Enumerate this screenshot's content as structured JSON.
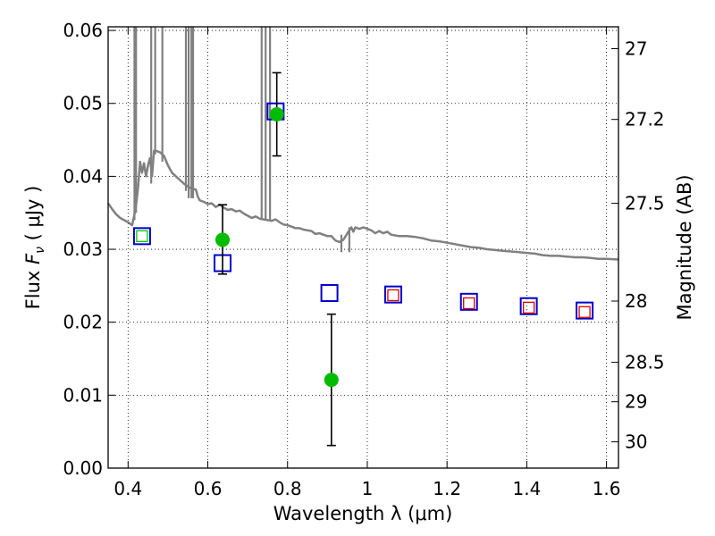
{
  "chart_data": {
    "type": "scatter",
    "xlabel": "Wavelength  λ (μm)",
    "ylabel": "Flux  F_ν  ( μJy )",
    "ylabel_right": "Magnitude (AB)",
    "xlim": [
      0.35,
      1.63
    ],
    "ylim": [
      0.0,
      0.0605
    ],
    "grid": true,
    "x_ticks": [
      0.4,
      0.6,
      0.8,
      1.0,
      1.2,
      1.4,
      1.6
    ],
    "x_tick_labels": [
      "0.4",
      "0.6",
      "0.8",
      "1",
      "1.2",
      "1.4",
      "1.6"
    ],
    "y_ticks": [
      0.0,
      0.01,
      0.02,
      0.03,
      0.04,
      0.05,
      0.06
    ],
    "y_tick_labels": [
      "0.00",
      "0.01",
      "0.02",
      "0.03",
      "0.04",
      "0.05",
      "0.06"
    ],
    "right_ticks": [
      {
        "label": "27",
        "flux": 0.0575
      },
      {
        "label": "27.2",
        "flux": 0.0478
      },
      {
        "label": "27.5",
        "flux": 0.0363
      },
      {
        "label": "28",
        "flux": 0.0229
      },
      {
        "label": "28.5",
        "flux": 0.0145
      },
      {
        "label": "29",
        "flux": 0.0091
      },
      {
        "label": "30",
        "flux": 0.0036
      }
    ],
    "series": [
      {
        "style": "line",
        "color": "#808080",
        "points": [
          [
            0.35,
            0.0363
          ],
          [
            0.36,
            0.0355
          ],
          [
            0.37,
            0.0348
          ],
          [
            0.38,
            0.0343
          ],
          [
            0.39,
            0.034
          ],
          [
            0.4,
            0.0337
          ],
          [
            0.41,
            0.0333
          ],
          [
            0.415,
            0.0345
          ],
          [
            0.42,
            0.036
          ],
          [
            0.425,
            0.0385
          ],
          [
            0.43,
            0.042
          ],
          [
            0.435,
            0.0405
          ],
          [
            0.44,
            0.0418
          ],
          [
            0.445,
            0.04
          ],
          [
            0.45,
            0.0415
          ],
          [
            0.455,
            0.0425
          ],
          [
            0.46,
            0.04
          ],
          [
            0.465,
            0.0435
          ],
          [
            0.47,
            0.0435
          ],
          [
            0.48,
            0.0433
          ],
          [
            0.49,
            0.0428
          ],
          [
            0.5,
            0.0415
          ],
          [
            0.51,
            0.0405
          ],
          [
            0.52,
            0.04
          ],
          [
            0.53,
            0.0395
          ],
          [
            0.54,
            0.039
          ],
          [
            0.55,
            0.0386
          ],
          [
            0.56,
            0.0383
          ],
          [
            0.57,
            0.0382
          ],
          [
            0.575,
            0.0372
          ],
          [
            0.58,
            0.0367
          ],
          [
            0.59,
            0.0365
          ],
          [
            0.6,
            0.0362
          ],
          [
            0.61,
            0.0363
          ],
          [
            0.62,
            0.0358
          ],
          [
            0.63,
            0.0361
          ],
          [
            0.64,
            0.0357
          ],
          [
            0.65,
            0.0354
          ],
          [
            0.66,
            0.0355
          ],
          [
            0.67,
            0.0352
          ],
          [
            0.68,
            0.0353
          ],
          [
            0.69,
            0.0349
          ],
          [
            0.7,
            0.0346
          ],
          [
            0.71,
            0.0343
          ],
          [
            0.72,
            0.0345
          ],
          [
            0.73,
            0.0342
          ],
          [
            0.74,
            0.0341
          ],
          [
            0.75,
            0.034
          ],
          [
            0.76,
            0.0339
          ],
          [
            0.77,
            0.0341
          ],
          [
            0.78,
            0.0337
          ],
          [
            0.79,
            0.0334
          ],
          [
            0.8,
            0.0333
          ],
          [
            0.81,
            0.0331
          ],
          [
            0.82,
            0.0329
          ],
          [
            0.83,
            0.0329
          ],
          [
            0.84,
            0.0327
          ],
          [
            0.85,
            0.0326
          ],
          [
            0.86,
            0.0325
          ],
          [
            0.87,
            0.0321
          ],
          [
            0.88,
            0.0322
          ],
          [
            0.89,
            0.032
          ],
          [
            0.9,
            0.0318
          ],
          [
            0.91,
            0.0318
          ],
          [
            0.92,
            0.0312
          ],
          [
            0.93,
            0.031
          ],
          [
            0.94,
            0.0313
          ],
          [
            0.95,
            0.0322
          ],
          [
            0.96,
            0.033
          ],
          [
            0.965,
            0.0324
          ],
          [
            0.97,
            0.033
          ],
          [
            0.98,
            0.0328
          ],
          [
            0.99,
            0.033
          ],
          [
            1.0,
            0.0328
          ],
          [
            1.01,
            0.0326
          ],
          [
            1.02,
            0.0322
          ],
          [
            1.03,
            0.0325
          ],
          [
            1.04,
            0.0322
          ],
          [
            1.05,
            0.0324
          ],
          [
            1.06,
            0.032
          ],
          [
            1.08,
            0.0318
          ],
          [
            1.1,
            0.0318
          ],
          [
            1.12,
            0.0317
          ],
          [
            1.14,
            0.0315
          ],
          [
            1.16,
            0.0312
          ],
          [
            1.18,
            0.0311
          ],
          [
            1.2,
            0.0309
          ],
          [
            1.22,
            0.0307
          ],
          [
            1.24,
            0.0305
          ],
          [
            1.26,
            0.0303
          ],
          [
            1.28,
            0.0302
          ],
          [
            1.3,
            0.03
          ],
          [
            1.32,
            0.0299
          ],
          [
            1.34,
            0.0298
          ],
          [
            1.36,
            0.0297
          ],
          [
            1.38,
            0.0296
          ],
          [
            1.4,
            0.0295
          ],
          [
            1.42,
            0.0294
          ],
          [
            1.44,
            0.0292
          ],
          [
            1.46,
            0.0291
          ],
          [
            1.48,
            0.0291
          ],
          [
            1.5,
            0.029
          ],
          [
            1.52,
            0.0289
          ],
          [
            1.54,
            0.0289
          ],
          [
            1.56,
            0.0288
          ],
          [
            1.58,
            0.0287
          ],
          [
            1.6,
            0.0287
          ],
          [
            1.63,
            0.0286
          ]
        ],
        "spikes": [
          [
            0.416,
            0.034,
            0.0605
          ],
          [
            0.42,
            0.035,
            0.0605
          ],
          [
            0.458,
            0.039,
            0.0605
          ],
          [
            0.468,
            0.043,
            0.0605
          ],
          [
            0.486,
            0.042,
            0.0605
          ],
          [
            0.545,
            0.038,
            0.0605
          ],
          [
            0.552,
            0.037,
            0.0605
          ],
          [
            0.559,
            0.037,
            0.0605
          ],
          [
            0.563,
            0.037,
            0.0605
          ],
          [
            0.735,
            0.034,
            0.0605
          ],
          [
            0.745,
            0.034,
            0.0605
          ],
          [
            0.756,
            0.034,
            0.0605
          ],
          [
            0.935,
            0.0296,
            0.032
          ],
          [
            0.955,
            0.0296,
            0.033
          ]
        ]
      },
      {
        "style": "open-square",
        "color": "#0000cc",
        "points": [
          [
            0.435,
            0.0318
          ],
          [
            0.637,
            0.0281
          ],
          [
            0.77,
            0.0489
          ],
          [
            0.905,
            0.024
          ],
          [
            1.065,
            0.0238
          ],
          [
            1.255,
            0.0228
          ],
          [
            1.405,
            0.0222
          ],
          [
            1.545,
            0.0216
          ]
        ]
      },
      {
        "style": "open-square-small",
        "color": "#00cc00",
        "points": [
          [
            0.435,
            0.0318
          ]
        ]
      },
      {
        "style": "open-square-small",
        "color": "#dd0000",
        "points": [
          [
            1.065,
            0.0237
          ],
          [
            1.255,
            0.0226
          ],
          [
            1.405,
            0.022
          ],
          [
            1.545,
            0.0214
          ]
        ]
      },
      {
        "style": "filled-circle-errorbar",
        "color": "#00bb00",
        "points": [
          {
            "x": 0.637,
            "y": 0.0313,
            "ylo": 0.0266,
            "yhi": 0.0361
          },
          {
            "x": 0.773,
            "y": 0.0485,
            "ylo": 0.0428,
            "yhi": 0.0542
          },
          {
            "x": 0.91,
            "y": 0.0121,
            "ylo": 0.0031,
            "yhi": 0.0211
          }
        ]
      }
    ]
  }
}
